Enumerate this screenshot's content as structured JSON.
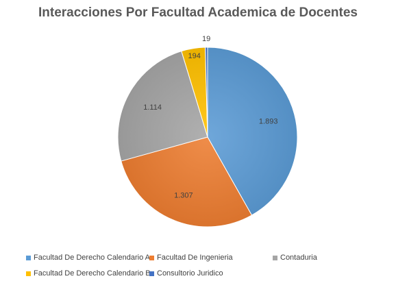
{
  "chart_data": {
    "type": "pie",
    "title": "Interacciones Por Facultad Academica de Docentes",
    "categories": [
      "Facultad De Derecho Calendario A",
      "Facultad De Ingenieria",
      "Contaduria",
      "Facultad De Derecho Calendario B",
      "Consultorio Juridico"
    ],
    "values": [
      1893,
      1307,
      1114,
      194,
      19
    ],
    "data_labels": [
      "1.893",
      "1.307",
      "1.114",
      "194",
      "19"
    ],
    "colors": [
      "#5B9BD5",
      "#ED7D31",
      "#A5A5A5",
      "#FFC000",
      "#4472C4"
    ],
    "legend_position": "bottom"
  }
}
